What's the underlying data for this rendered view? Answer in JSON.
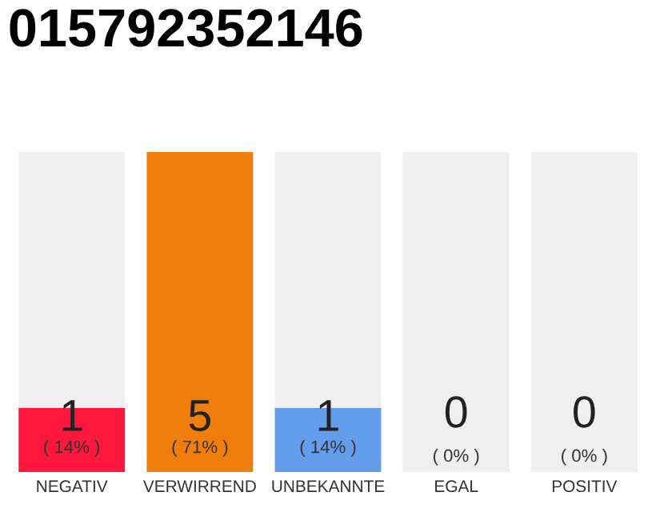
{
  "chart_data": {
    "type": "bar",
    "title": "015792352146",
    "categories": [
      "NEGATIV",
      "VERWIRREND",
      "UNBEKANNTE",
      "EGAL",
      "POSITIV"
    ],
    "stacked": true,
    "series": [
      {
        "colors": [
          "#ff173d",
          "#f07e0a",
          "#659ded",
          "#8bc34a",
          "#22aa44"
        ],
        "values": [
          1,
          5,
          1,
          0,
          0
        ],
        "value_labels": [
          "1\n( 14% )",
          "5\n( 71% )",
          "1\n( 14% )",
          "0\n( 0% )",
          "0\n( 0% )"
        ]
      },
      {
        "color": "#efefef",
        "values": [
          4,
          0,
          4,
          5,
          5
        ]
      }
    ],
    "grid": false,
    "legend": false,
    "tick_labels": "x"
  }
}
